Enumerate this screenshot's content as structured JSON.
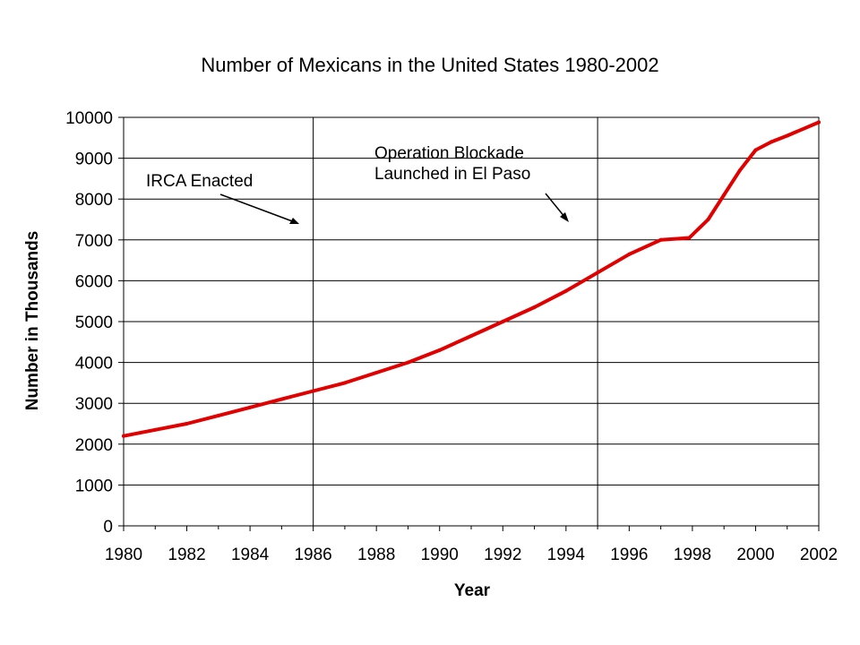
{
  "chart_data": {
    "type": "line",
    "title": "Number of Mexicans in the United States 1980-2002",
    "xlabel": "Year",
    "ylabel": "Number in Thousands",
    "xlim": [
      1980,
      2002
    ],
    "ylim": [
      0,
      10000
    ],
    "x_ticks": [
      "1980",
      "1982",
      "1984",
      "1986",
      "1988",
      "1990",
      "1992",
      "1994",
      "1996",
      "1998",
      "2000",
      "2002"
    ],
    "y_ticks": [
      "0",
      "1000",
      "2000",
      "3000",
      "4000",
      "5000",
      "6000",
      "7000",
      "8000",
      "9000",
      "10000"
    ],
    "grid": "horizontal",
    "series": [
      {
        "color": "#e00000",
        "x": [
          1980,
          1981,
          1982,
          1983,
          1984,
          1985,
          1986,
          1987,
          1988,
          1989,
          1990,
          1991,
          1992,
          1993,
          1994,
          1995,
          1996,
          1997,
          1997.9,
          1998.5,
          1999,
          1999.5,
          2000,
          2000.5,
          2001,
          2002
        ],
        "y": [
          2200,
          2350,
          2500,
          2700,
          2900,
          3100,
          3300,
          3500,
          3750,
          4000,
          4300,
          4650,
          5000,
          5350,
          5750,
          6200,
          6650,
          7000,
          7050,
          7500,
          8100,
          8700,
          9200,
          9400,
          9550,
          9880
        ]
      }
    ],
    "markers": [
      {
        "x": 1986,
        "label": "IRCA Enacted"
      },
      {
        "x": 1995,
        "label": "Operation Blockade\nLaunched in El Paso"
      }
    ]
  },
  "text": {
    "title": "Number of Mexicans in the United States 1980-2002",
    "xlabel": "Year",
    "ylabel": "Number in Thousands",
    "anno_irca": "IRCA Enacted",
    "anno_op_line1": "Operation Blockade",
    "anno_op_line2": "Launched in El Paso"
  },
  "colors": {
    "series": "#e00000",
    "grid": "#000000"
  }
}
